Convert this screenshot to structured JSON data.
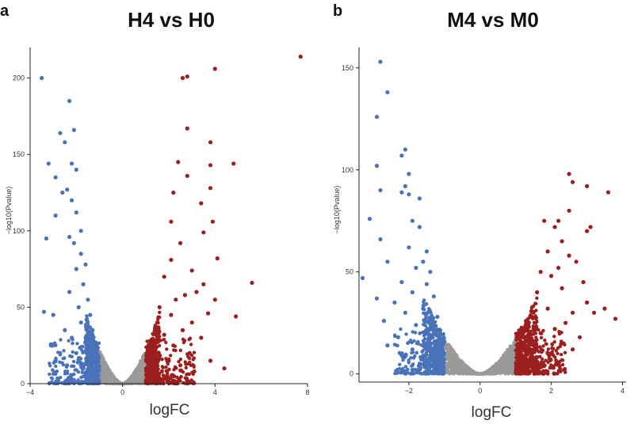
{
  "colors": {
    "not_significant": "#9a9a9a",
    "down": "#4a72b8",
    "up": "#9c1f1f"
  },
  "chart_data": [
    {
      "type": "scatter",
      "panel_label": "a",
      "title": "H4 vs H0",
      "xlabel": "logFC",
      "ylabel": "−log10(Pvalue)",
      "xlim": [
        -4,
        8
      ],
      "ylim": [
        0,
        220
      ],
      "xticks": [
        -4,
        0,
        4,
        8
      ],
      "yticks": [
        0,
        50,
        100,
        150,
        200
      ],
      "logfc_threshold": 1,
      "series": [
        {
          "name": "down",
          "points": [
            [
              -3.5,
              200
            ],
            [
              -3.2,
              144
            ],
            [
              -2.9,
              135
            ],
            [
              -3.3,
              95
            ],
            [
              -2.3,
              185
            ],
            [
              -2.1,
              166
            ],
            [
              -2.7,
              164
            ],
            [
              -2.5,
              158
            ],
            [
              -2.2,
              144
            ],
            [
              -2.0,
              140
            ],
            [
              -2.4,
              127
            ],
            [
              -2.6,
              125
            ],
            [
              -2.2,
              120
            ],
            [
              -2.9,
              110
            ],
            [
              -2.0,
              112
            ],
            [
              -1.8,
              100
            ],
            [
              -2.3,
              96
            ],
            [
              -2.1,
              92
            ],
            [
              -3.4,
              47
            ],
            [
              -3.0,
              45
            ],
            [
              -3.1,
              25
            ],
            [
              -2.9,
              15
            ],
            [
              -2.7,
              20
            ],
            [
              -2.5,
              35
            ],
            [
              -2.3,
              60
            ],
            [
              -2.0,
              75
            ],
            [
              -1.8,
              85
            ],
            [
              -1.6,
              78
            ],
            [
              -1.7,
              65
            ],
            [
              -1.5,
              55
            ],
            [
              -1.9,
              50
            ],
            [
              -1.4,
              45
            ],
            [
              -2.2,
              30
            ],
            [
              -1.8,
              40
            ],
            [
              -1.3,
              35
            ],
            [
              -1.6,
              30
            ],
            [
              -1.2,
              25
            ],
            [
              -2.0,
              20
            ],
            [
              -1.5,
              22
            ],
            [
              -1.9,
              15
            ],
            [
              -1.3,
              18
            ],
            [
              -1.1,
              12
            ],
            [
              -1.7,
              10
            ],
            [
              -1.4,
              14
            ],
            [
              -2.4,
              12
            ],
            [
              -1.2,
              8
            ],
            [
              -1.6,
              6
            ]
          ]
        },
        {
          "name": "up",
          "points": [
            [
              7.7,
              214
            ],
            [
              4.0,
              206
            ],
            [
              2.8,
              201
            ],
            [
              2.6,
              200
            ],
            [
              2.8,
              167
            ],
            [
              3.8,
              158
            ],
            [
              4.8,
              144
            ],
            [
              3.8,
              143
            ],
            [
              2.4,
              145
            ],
            [
              2.8,
              136
            ],
            [
              3.8,
              128
            ],
            [
              2.2,
              125
            ],
            [
              3.4,
              118
            ],
            [
              3.9,
              106
            ],
            [
              2.1,
              106
            ],
            [
              3.5,
              99
            ],
            [
              2.5,
              92
            ],
            [
              4.1,
              82
            ],
            [
              2.1,
              81
            ],
            [
              3.0,
              74
            ],
            [
              5.6,
              66
            ],
            [
              3.5,
              65
            ],
            [
              1.8,
              70
            ],
            [
              3.2,
              60
            ],
            [
              2.7,
              58
            ],
            [
              4.0,
              55
            ],
            [
              2.3,
              55
            ],
            [
              4.9,
              44
            ],
            [
              3.7,
              46
            ],
            [
              1.6,
              50
            ],
            [
              2.1,
              45
            ],
            [
              3.0,
              40
            ],
            [
              1.5,
              40
            ],
            [
              2.6,
              35
            ],
            [
              1.8,
              32
            ],
            [
              3.4,
              30
            ],
            [
              1.4,
              28
            ],
            [
              2.2,
              25
            ],
            [
              1.3,
              22
            ],
            [
              2.9,
              20
            ],
            [
              1.6,
              18
            ],
            [
              2.0,
              15
            ],
            [
              1.2,
              14
            ],
            [
              3.8,
              15
            ],
            [
              2.5,
              12
            ],
            [
              1.1,
              10
            ],
            [
              1.7,
              8
            ],
            [
              4.4,
              10
            ],
            [
              3.1,
              8
            ],
            [
              1.4,
              6
            ],
            [
              2.2,
              5
            ]
          ]
        }
      ]
    },
    {
      "type": "scatter",
      "panel_label": "b",
      "title": "M4 vs M0",
      "xlabel": "logFC",
      "ylabel": "−log10(Pvalue)",
      "xlim": [
        -3.4,
        4.1
      ],
      "ylim": [
        -4,
        160
      ],
      "xticks": [
        -2,
        0,
        2,
        4
      ],
      "yticks": [
        0,
        50,
        100,
        150
      ],
      "logfc_threshold": 1,
      "series": [
        {
          "name": "down",
          "points": [
            [
              -2.8,
              153
            ],
            [
              -2.6,
              138
            ],
            [
              -2.9,
              126
            ],
            [
              -2.1,
              110
            ],
            [
              -2.2,
              107
            ],
            [
              -2.0,
              98
            ],
            [
              -2.9,
              102
            ],
            [
              -2.1,
              92
            ],
            [
              -2.2,
              89
            ],
            [
              -2.0,
              88
            ],
            [
              -2.8,
              90
            ],
            [
              -1.7,
              86
            ],
            [
              -3.1,
              76
            ],
            [
              -1.9,
              75
            ],
            [
              -1.7,
              72
            ],
            [
              -2.8,
              66
            ],
            [
              -1.5,
              60
            ],
            [
              -2.0,
              62
            ],
            [
              -1.6,
              55
            ],
            [
              -2.6,
              55
            ],
            [
              -1.8,
              52
            ],
            [
              -1.4,
              50
            ],
            [
              -3.3,
              47
            ],
            [
              -2.2,
              45
            ],
            [
              -1.5,
              44
            ],
            [
              -1.9,
              40
            ],
            [
              -2.9,
              37
            ],
            [
              -1.3,
              38
            ],
            [
              -2.4,
              35
            ],
            [
              -1.6,
              32
            ],
            [
              -2.1,
              30
            ],
            [
              -1.2,
              28
            ],
            [
              -2.7,
              26
            ],
            [
              -1.8,
              24
            ],
            [
              -1.3,
              20
            ],
            [
              -2.3,
              18
            ],
            [
              -1.5,
              15
            ],
            [
              -1.9,
              12
            ],
            [
              -1.1,
              10
            ],
            [
              -2.6,
              14
            ],
            [
              -1.4,
              8
            ],
            [
              -1.7,
              5
            ],
            [
              -1.2,
              4
            ]
          ]
        },
        {
          "name": "up",
          "points": [
            [
              2.5,
              98
            ],
            [
              2.6,
              94
            ],
            [
              3.0,
              92
            ],
            [
              3.6,
              89
            ],
            [
              2.5,
              80
            ],
            [
              2.2,
              75
            ],
            [
              1.8,
              75
            ],
            [
              2.1,
              72
            ],
            [
              3.1,
              72
            ],
            [
              3.0,
              70
            ],
            [
              2.3,
              65
            ],
            [
              1.9,
              60
            ],
            [
              2.5,
              58
            ],
            [
              2.7,
              55
            ],
            [
              2.2,
              52
            ],
            [
              1.7,
              50
            ],
            [
              2.0,
              48
            ],
            [
              2.9,
              45
            ],
            [
              2.3,
              42
            ],
            [
              1.6,
              40
            ],
            [
              3.5,
              32
            ],
            [
              3.2,
              30
            ],
            [
              3.8,
              27
            ],
            [
              3.0,
              35
            ],
            [
              2.6,
              30
            ],
            [
              1.9,
              32
            ],
            [
              1.5,
              30
            ],
            [
              2.4,
              25
            ],
            [
              1.3,
              25
            ],
            [
              2.1,
              22
            ],
            [
              1.7,
              20
            ],
            [
              2.8,
              18
            ],
            [
              1.2,
              18
            ],
            [
              2.3,
              15
            ],
            [
              1.5,
              14
            ],
            [
              2.6,
              12
            ],
            [
              1.9,
              10
            ],
            [
              1.1,
              8
            ],
            [
              1.6,
              6
            ],
            [
              2.2,
              5
            ],
            [
              1.3,
              4
            ]
          ]
        }
      ]
    }
  ]
}
